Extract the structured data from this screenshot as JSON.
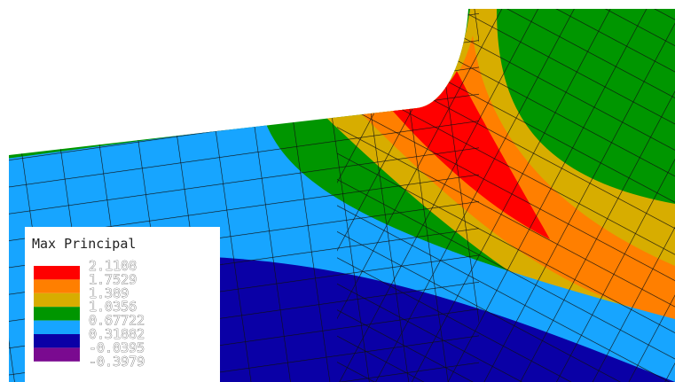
{
  "legend": {
    "title": "Max Principal",
    "levels": [
      {
        "label": "2.1108",
        "color": "#ff0000"
      },
      {
        "label": "1.7529",
        "color": "#ff7f00"
      },
      {
        "label": "1.389",
        "color": "#d7ad00"
      },
      {
        "label": "1.0356",
        "color": "#009600"
      },
      {
        "label": "0.67722",
        "color": "#17a5ff"
      },
      {
        "label": "0.31882",
        "color": "#0a00a6"
      },
      {
        "label": "-0.0395",
        "color": "#7a0a90"
      },
      {
        "label": "-0.3979",
        "color": null
      }
    ]
  },
  "colors": {
    "red": "#ff0000",
    "orange": "#ff7f00",
    "yellow": "#d7ad00",
    "green": "#009600",
    "light_blue": "#17a5ff",
    "dark_blue": "#0a00a6",
    "mesh_line": "#101010"
  }
}
